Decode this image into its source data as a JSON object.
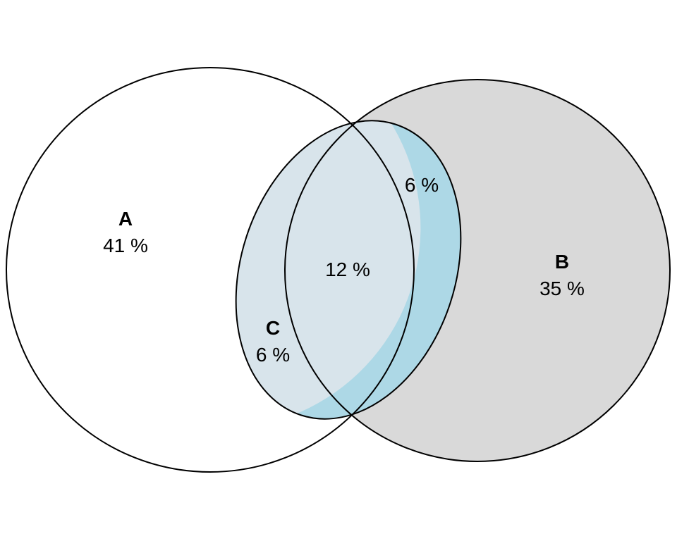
{
  "sets": {
    "a": {
      "name": "A",
      "only_percent": "41 %",
      "color": "#ffffff"
    },
    "b": {
      "name": "B",
      "only_percent": "35 %",
      "color": "#d9d9d9"
    },
    "c": {
      "name": "C",
      "only_percent": "6 %",
      "color": "#add8e6"
    }
  },
  "overlaps": {
    "a_b_c": "12 %",
    "b_c": "6 %"
  },
  "overlap_color": "#d8e4eb",
  "stroke_color": "#000000"
}
